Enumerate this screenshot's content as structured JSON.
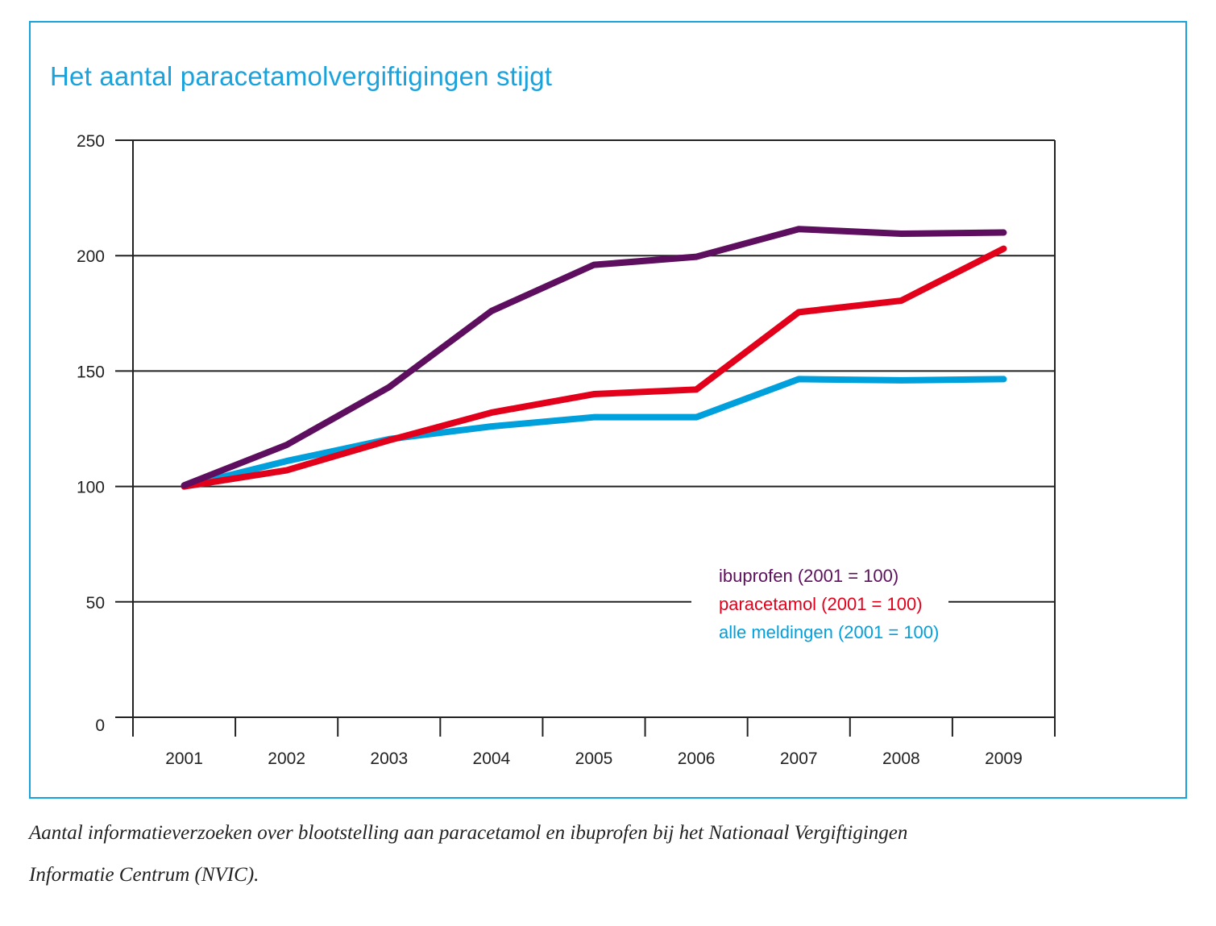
{
  "chart_data": {
    "type": "line",
    "title": "Het aantal paracetamolvergiftigingen stijgt",
    "xlabel": "",
    "ylabel": "",
    "x": [
      "2001",
      "2002",
      "2003",
      "2004",
      "2005",
      "2006",
      "2007",
      "2008",
      "2009"
    ],
    "ylim": [
      0,
      250
    ],
    "yticks": [
      "0",
      "50",
      "100",
      "150",
      "200",
      "250"
    ],
    "grid": true,
    "legend_position": "lower-right",
    "series": [
      {
        "name": "ibuprofen (2001 = 100)",
        "color": "#5e0e5e",
        "values": [
          100.5,
          118,
          143,
          176,
          196,
          199.5,
          211.5,
          209.5,
          210
        ]
      },
      {
        "name": "paracetamol (2001 = 100)",
        "color": "#e2001a",
        "values": [
          100,
          107,
          120,
          132,
          140,
          142,
          175.5,
          180.5,
          203
        ]
      },
      {
        "name": "alle meldingen (2001 = 100)",
        "color": "#00a0dc",
        "values": [
          100,
          111,
          120.5,
          126,
          130,
          130,
          146.5,
          146,
          146.5
        ]
      }
    ]
  },
  "caption": {
    "line1": "Aantal informatieverzoeken over blootstelling aan paracetamol en ibuprofen bij het Nationaal Vergiftigingen",
    "line2": "Informatie Centrum (NVIC)."
  },
  "colors": {
    "frame": "#1aa2dc",
    "title": "#1aa2dc",
    "axis": "#222222"
  }
}
